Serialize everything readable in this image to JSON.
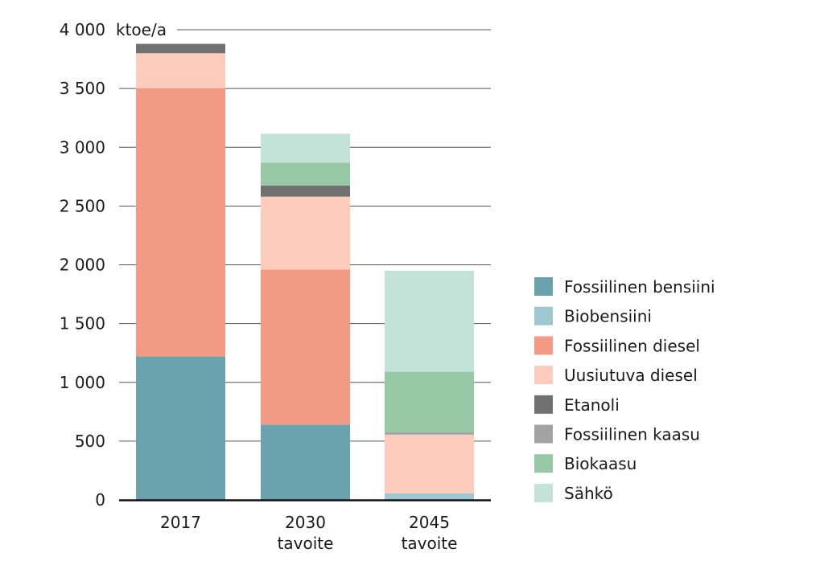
{
  "chart_data": {
    "type": "bar",
    "stacked": true,
    "unit_label": "ktoe/a",
    "ylim": [
      0,
      4000
    ],
    "y_ticks": [
      {
        "value": 0,
        "label": "0"
      },
      {
        "value": 500,
        "label": "500"
      },
      {
        "value": 1000,
        "label": "1 000"
      },
      {
        "value": 1500,
        "label": "1 500"
      },
      {
        "value": 2000,
        "label": "2 000"
      },
      {
        "value": 2500,
        "label": "2 500"
      },
      {
        "value": 3000,
        "label": "3 000"
      },
      {
        "value": 3500,
        "label": "3 500"
      },
      {
        "value": 4000,
        "label": "4 000"
      }
    ],
    "grid": true,
    "legend_position": "right",
    "categories": [
      {
        "line1": "2017",
        "line2": ""
      },
      {
        "line1": "2030",
        "line2": "tavoite"
      },
      {
        "line1": "2045",
        "line2": "tavoite"
      }
    ],
    "series": [
      {
        "name": "Fossiilinen bensiini",
        "color": "#6aa3ae",
        "values": [
          1220,
          640,
          0
        ]
      },
      {
        "name": "Biobensiini",
        "color": "#9ec7d2",
        "values": [
          0,
          0,
          55
        ]
      },
      {
        "name": "Fossiilinen diesel",
        "color": "#f29a84",
        "values": [
          2280,
          1320,
          0
        ]
      },
      {
        "name": "Uusiutuva diesel",
        "color": "#fdccbc",
        "values": [
          300,
          620,
          500
        ]
      },
      {
        "name": "Etanoli",
        "color": "#717171",
        "values": [
          80,
          95,
          0
        ]
      },
      {
        "name": "Fossiilinen kaasu",
        "color": "#a3a3a3",
        "values": [
          0,
          0,
          20
        ]
      },
      {
        "name": "Biokaasu",
        "color": "#98c9a7",
        "values": [
          0,
          195,
          515
        ]
      },
      {
        "name": "Sähkö",
        "color": "#c3e3d9",
        "values": [
          0,
          245,
          860
        ]
      }
    ]
  }
}
